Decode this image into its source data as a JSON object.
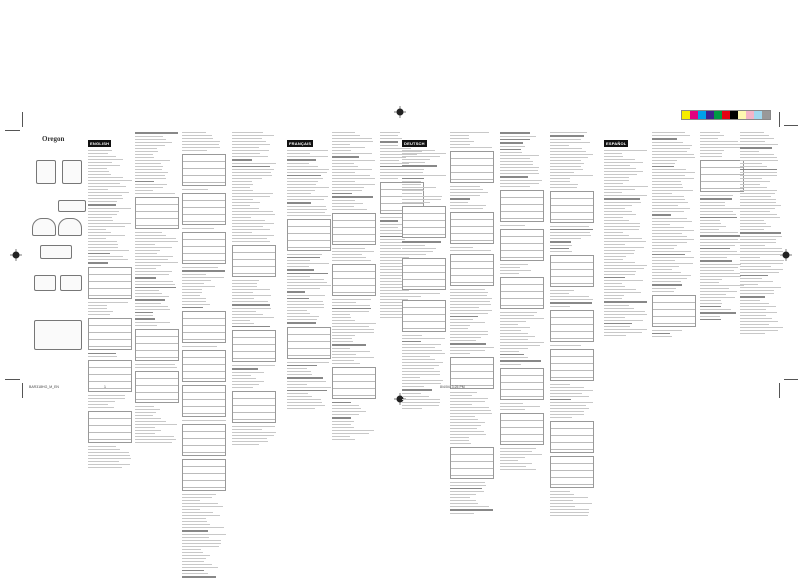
{
  "logo": {
    "brand": "Oregon"
  },
  "sections": [
    {
      "label": "ENGLISH"
    },
    {
      "label": "FRANÇAIS"
    },
    {
      "label": "DEUTSCH"
    },
    {
      "label": "ESPAÑOL"
    }
  ],
  "slug": {
    "file": "BAR318HG_M_EN",
    "page": "1",
    "timestamp": "8/4/04, 3:25 PM"
  },
  "colorbar": [
    "#f5ec00",
    "#e4007f",
    "#00a0e9",
    "#3f1f8c",
    "#009944",
    "#e60012",
    "#000000",
    "#fff9b1",
    "#f4b4c8",
    "#a0d8ef",
    "#999999"
  ]
}
